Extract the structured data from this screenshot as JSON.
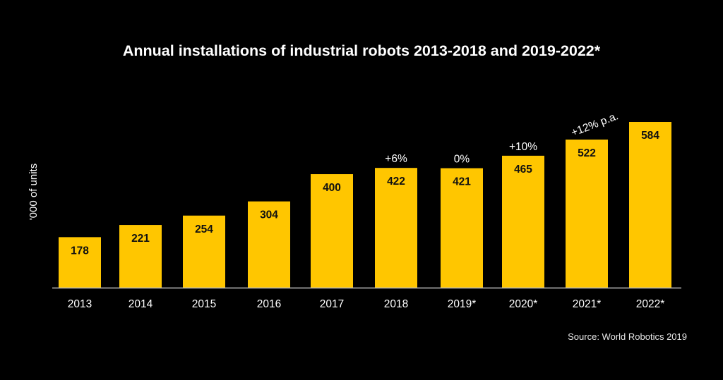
{
  "chart_data": {
    "type": "bar",
    "title": "Annual installations of industrial robots 2013-2018 and 2019-2022*",
    "xlabel": "",
    "ylabel": "'000 of units",
    "categories": [
      "2013",
      "2014",
      "2015",
      "2016",
      "2017",
      "2018",
      "2019*",
      "2020*",
      "2021*",
      "2022*"
    ],
    "values": [
      178,
      221,
      254,
      304,
      400,
      422,
      421,
      465,
      522,
      584
    ],
    "data_labels": [
      "178",
      "221",
      "254",
      "304",
      "400",
      "422",
      "421",
      "465",
      "522",
      "584"
    ],
    "ylim": [
      0,
      620
    ],
    "grid": false,
    "legend": "none",
    "bar_color": "#FFC600",
    "background": "#000000",
    "annotations": [
      {
        "text": "+6%",
        "category": "2018"
      },
      {
        "text": "0%",
        "category": "2019*"
      },
      {
        "text": "+10%",
        "category": "2020*"
      },
      {
        "text": "+12% p.a.",
        "category": "2021*",
        "rotated": true
      }
    ],
    "source": "Source: World Robotics 2019"
  }
}
